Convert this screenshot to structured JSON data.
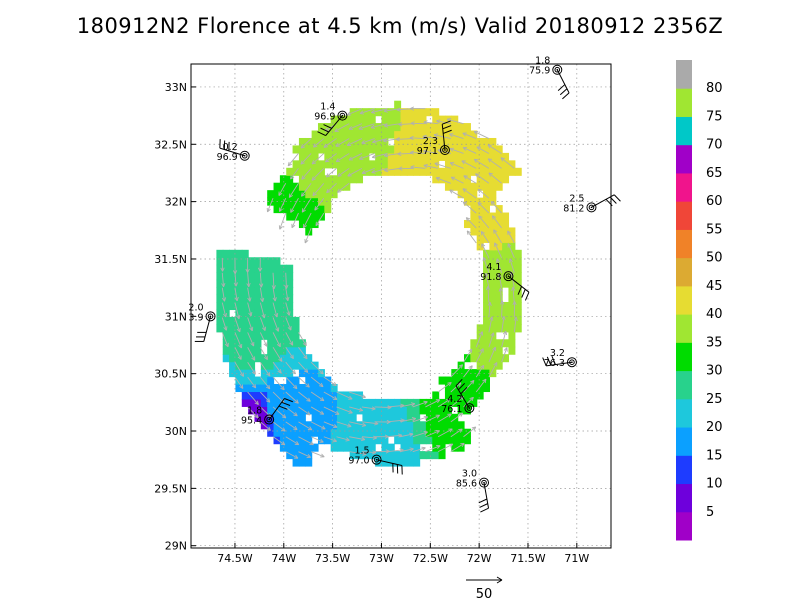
{
  "title": "180912N2 Florence at 4.5 km (m/s) Valid 20180912 2356Z",
  "colors": {
    "grid": "#9a9a9a",
    "vector": "#b0b0b0",
    "station": "#000000"
  },
  "chart_data": {
    "type": "heatmap",
    "title": "180912N2 Florence at 4.5 km (m/s) Valid 20180912 2356Z",
    "xlabel": "",
    "ylabel": "",
    "units": "m/s",
    "xlim": [
      -74.95,
      -70.65
    ],
    "ylim": [
      28.98,
      33.2
    ],
    "x_ticks": [
      {
        "value": -74.5,
        "label": "74.5W"
      },
      {
        "value": -74.0,
        "label": "74W"
      },
      {
        "value": -73.5,
        "label": "73.5W"
      },
      {
        "value": -73.0,
        "label": "73W"
      },
      {
        "value": -72.5,
        "label": "72.5W"
      },
      {
        "value": -72.0,
        "label": "72W"
      },
      {
        "value": -71.5,
        "label": "71.5W"
      },
      {
        "value": -71.0,
        "label": "71W"
      }
    ],
    "y_ticks": [
      {
        "value": 29.0,
        "label": "29N"
      },
      {
        "value": 29.5,
        "label": "29.5N"
      },
      {
        "value": 30.0,
        "label": "30N"
      },
      {
        "value": 30.5,
        "label": "30.5N"
      },
      {
        "value": 31.0,
        "label": "31N"
      },
      {
        "value": 31.5,
        "label": "31.5N"
      },
      {
        "value": 32.0,
        "label": "32N"
      },
      {
        "value": 32.5,
        "label": "32.5N"
      },
      {
        "value": 33.0,
        "label": "33N"
      }
    ],
    "grid": true,
    "center": {
      "lon": -72.85,
      "lat": 31.23
    },
    "colorbar": {
      "levels": [
        5,
        10,
        15,
        20,
        25,
        30,
        35,
        40,
        45,
        50,
        55,
        60,
        65,
        70,
        75,
        80
      ],
      "labels": [
        "5",
        "10",
        "15",
        "20",
        "25",
        "30",
        "35",
        "40",
        "45",
        "50",
        "55",
        "60",
        "65",
        "70",
        "75",
        "80"
      ],
      "colors": [
        "#a000c8",
        "#6e00dc",
        "#1e3cff",
        "#0ba0ff",
        "#1ec8dc",
        "#28d28c",
        "#00dc00",
        "#a0e632",
        "#e6dc32",
        "#dcaa32",
        "#f08228",
        "#f04638",
        "#f0148c",
        "#a000c8",
        "#00c8c8",
        "#a0e632",
        "#aaaaaa"
      ]
    },
    "wind_field_samples": [
      {
        "lon": -73.2,
        "lat": 32.75,
        "speed": 38
      },
      {
        "lon": -72.9,
        "lat": 32.8,
        "speed": 40
      },
      {
        "lon": -72.4,
        "lat": 32.55,
        "speed": 43
      },
      {
        "lon": -72.2,
        "lat": 32.15,
        "speed": 45
      },
      {
        "lon": -71.9,
        "lat": 31.7,
        "speed": 40
      },
      {
        "lon": -71.75,
        "lat": 31.0,
        "speed": 38
      },
      {
        "lon": -71.9,
        "lat": 30.55,
        "speed": 35
      },
      {
        "lon": -72.3,
        "lat": 30.15,
        "speed": 32
      },
      {
        "lon": -72.9,
        "lat": 29.95,
        "speed": 24
      },
      {
        "lon": -73.4,
        "lat": 29.9,
        "speed": 20
      },
      {
        "lon": -74.0,
        "lat": 30.15,
        "speed": 18
      },
      {
        "lon": -74.3,
        "lat": 30.7,
        "speed": 26
      },
      {
        "lon": -74.1,
        "lat": 31.2,
        "speed": 30
      },
      {
        "lon": -74.3,
        "lat": 30.1,
        "speed": 8
      }
    ],
    "stations": [
      {
        "lon": -71.2,
        "lat": 33.15,
        "value1": "1.8",
        "value2": "75.9",
        "label_side": "left"
      },
      {
        "lon": -73.4,
        "lat": 32.75,
        "value1": "1.4",
        "value2": "96.9",
        "label_side": "left"
      },
      {
        "lon": -74.4,
        "lat": 32.4,
        "value1": "0.2",
        "value2": "96.9",
        "label_side": "left"
      },
      {
        "lon": -72.35,
        "lat": 32.45,
        "value1": "2.3",
        "value2": "97.1",
        "label_side": "left"
      },
      {
        "lon": -70.85,
        "lat": 31.95,
        "value1": "2.5",
        "value2": "81.2",
        "label_side": "left"
      },
      {
        "lon": -71.7,
        "lat": 31.35,
        "value1": "4.1",
        "value2": "91.8",
        "label_side": "left"
      },
      {
        "lon": -74.75,
        "lat": 31.0,
        "value1": "2.0",
        "value2": "3.9",
        "label_side": "left"
      },
      {
        "lon": -71.05,
        "lat": 30.6,
        "value1": "3.2",
        "value2": "76.3",
        "label_side": "left"
      },
      {
        "lon": -72.1,
        "lat": 30.2,
        "value1": "4.2",
        "value2": "76.1",
        "label_side": "left"
      },
      {
        "lon": -74.15,
        "lat": 30.1,
        "value1": "1.8",
        "value2": "95.4",
        "label_side": "left"
      },
      {
        "lon": -73.05,
        "lat": 29.75,
        "value1": "1.5",
        "value2": "97.0",
        "label_side": "left"
      },
      {
        "lon": -71.95,
        "lat": 29.55,
        "value1": "3.0",
        "value2": "85.6",
        "label_side": "left"
      }
    ],
    "reference_vector": {
      "label": "50",
      "speed": 50
    }
  }
}
